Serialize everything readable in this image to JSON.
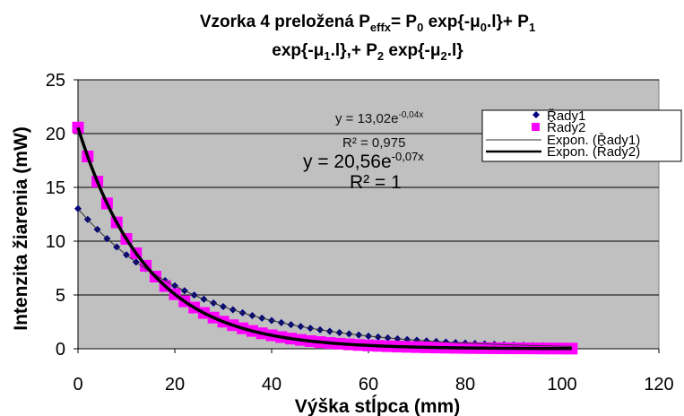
{
  "chart_data": {
    "type": "scatter",
    "title_parts": {
      "l1_a": "Vzorka 4 preložená P",
      "l1_sub_eff": "effx",
      "l1_b": "= P",
      "l1_sub_0a": "0",
      "l1_c": " exp{-μ",
      "l1_sub_0b": "0",
      "l1_d": ".l}+ P",
      "l1_sub_1a": "1",
      "l2_a": "exp{-μ",
      "l2_sub_1": "1",
      "l2_b": ".l},+ P",
      "l2_sub_2a": "2",
      "l2_c": " exp{-μ",
      "l2_sub_2b": "2",
      "l2_d": ".l}"
    },
    "xlabel": "Výška stĺpca (mm)",
    "ylabel": "Intenzita žiarenia (mW)",
    "xlim": [
      0,
      120
    ],
    "ylim": [
      0,
      25
    ],
    "x_ticks": [
      "0",
      "20",
      "40",
      "60",
      "80",
      "100",
      "120"
    ],
    "y_ticks": [
      "0",
      "5",
      "10",
      "15",
      "20",
      "25"
    ],
    "grid": "horizontal",
    "legend_position": "top-right",
    "series": [
      {
        "name": "Řady1",
        "marker": "diamond",
        "color": "#000080",
        "fit": {
          "type": "exponential",
          "a": 13.02,
          "b": -0.04
        },
        "x_range": [
          0,
          102
        ],
        "step": 2
      },
      {
        "name": "Řady2",
        "marker": "square",
        "color": "#ff00ff",
        "fit": {
          "type": "exponential",
          "a": 20.56,
          "b": -0.07
        },
        "x_range": [
          0,
          102
        ],
        "step": 2
      }
    ],
    "trendlines": [
      {
        "name": "Expon. (Řady1)",
        "color": "#303030",
        "weight": "thin"
      },
      {
        "name": "Expon. (Řady2)",
        "color": "#000000",
        "weight": "thick"
      }
    ],
    "annotations": {
      "eq1_main": "y = 13,02e",
      "eq1_exp": "-0,04x",
      "eq1_r2": "R² = 0,975",
      "eq2_main": "y = 20,56e",
      "eq2_exp": "-0,07x",
      "eq2_r2": "R² = 1"
    },
    "colors": {
      "plot_background": "#c0c0c0",
      "grid": "#000000"
    }
  }
}
